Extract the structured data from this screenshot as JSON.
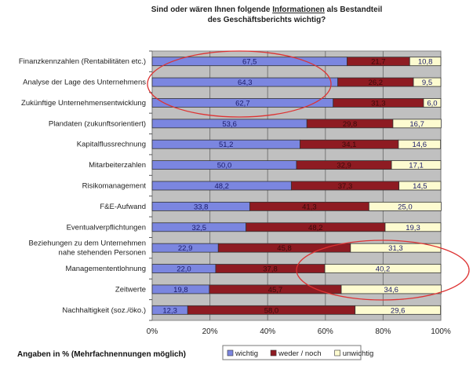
{
  "chart_data": {
    "type": "bar",
    "orientation": "horizontal",
    "stacked": true,
    "title_line1_pre": "Sind oder wären Ihnen folgende ",
    "title_line1_em": "Informationen",
    "title_line1_post": " als Bestandteil",
    "title_line2": "des Geschäftsberichts wichtig?",
    "footer": "Angaben in % (Mehrfachnennungen möglich)",
    "categories": [
      "Finanzkennzahlen (Rentabilitäten etc.)",
      "Analyse der Lage des Unternehmens",
      "Zukünftige Unternehmensentwicklung",
      "Plandaten (zukunftsorientiert)",
      "Kapitalflussrechnung",
      "Mitarbeiterzahlen",
      "Risikomanagement",
      "F&E-Aufwand",
      "Eventualverpflichtungen",
      "Beziehungen zu dem Unternehmen nahe stehenden Personen",
      "Managemententlohnung",
      "Zeitwerte",
      "Nachhaltigkeit (soz./öko.)"
    ],
    "series": [
      {
        "name": "wichtig",
        "color": "#7b86e0",
        "values": [
          67.5,
          64.3,
          62.7,
          53.6,
          51.2,
          50.0,
          48.2,
          33.8,
          32.5,
          22.9,
          22.0,
          19.8,
          12.3
        ]
      },
      {
        "name": "weder / noch",
        "color": "#8e1b22",
        "values": [
          21.7,
          26.2,
          31.3,
          29.8,
          34.1,
          32.9,
          37.3,
          41.3,
          48.2,
          45.8,
          37.8,
          45.7,
          58.0
        ]
      },
      {
        "name": "unwichtig",
        "color": "#fdfbd0",
        "values": [
          10.8,
          9.5,
          6.0,
          16.7,
          14.6,
          17.1,
          14.5,
          25.0,
          19.3,
          31.3,
          40.2,
          34.6,
          29.6
        ]
      }
    ],
    "xlim": [
      0,
      100
    ],
    "xticks": [
      "0%",
      "20%",
      "40%",
      "60%",
      "80%",
      "100%"
    ],
    "grid": true,
    "plot_background": "#c0c0c0",
    "legend_position": "bottom",
    "annotations": "red ellipses around top three 'wichtig' bars and 'unwichtig' bars of Managemententlohnung/Zeitwerte"
  }
}
